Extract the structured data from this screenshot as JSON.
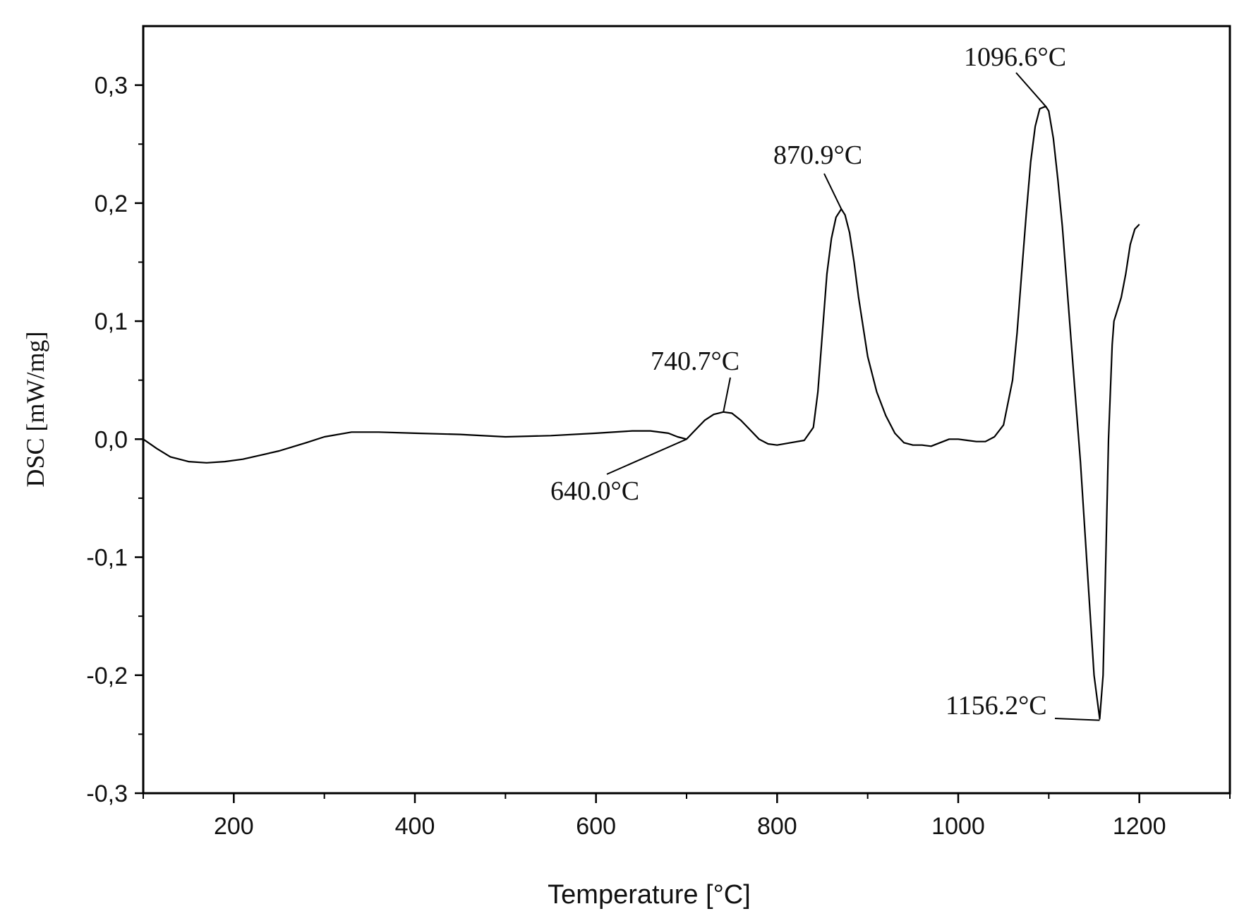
{
  "chart_data": {
    "type": "line",
    "xlabel": "Temperature [°C]",
    "ylabel": "DSC [mW/mg]",
    "xlim": [
      100,
      1300
    ],
    "ylim": [
      -0.3,
      0.35
    ],
    "x_ticks": [
      200,
      400,
      600,
      800,
      1000,
      1200
    ],
    "x_tick_labels": [
      "200",
      "400",
      "600",
      "800",
      "1000",
      "1200"
    ],
    "y_ticks": [
      -0.3,
      -0.2,
      -0.1,
      0.0,
      0.1,
      0.2,
      0.3
    ],
    "y_tick_labels": [
      "-0,3",
      "-0,2",
      "-0,1",
      "0,0",
      "0,1",
      "0,2",
      "0,3"
    ],
    "grid": false,
    "series": [
      {
        "x": [
          100,
          115,
          130,
          150,
          170,
          190,
          210,
          250,
          280,
          300,
          330,
          360,
          400,
          450,
          500,
          550,
          600,
          640,
          660,
          680,
          690,
          700,
          710,
          720,
          730,
          740.7,
          750,
          760,
          770,
          780,
          790,
          800,
          815,
          830,
          840,
          845,
          850,
          855,
          860,
          865,
          870.9,
          875,
          880,
          885,
          890,
          900,
          910,
          920,
          930,
          940,
          950,
          960,
          970,
          980,
          990,
          1000,
          1010,
          1020,
          1030,
          1040,
          1050,
          1060,
          1065,
          1070,
          1075,
          1080,
          1085,
          1090,
          1096.6,
          1100,
          1105,
          1110,
          1115,
          1120,
          1125,
          1130,
          1135,
          1140,
          1145,
          1150,
          1156.2,
          1160,
          1163,
          1166,
          1170,
          1172,
          1174,
          1178,
          1180,
          1185,
          1190,
          1195,
          1200
        ],
        "y": [
          0.0,
          -0.008,
          -0.015,
          -0.019,
          -0.02,
          -0.019,
          -0.017,
          -0.01,
          -0.003,
          0.002,
          0.006,
          0.006,
          0.005,
          0.004,
          0.002,
          0.003,
          0.005,
          0.007,
          0.007,
          0.005,
          0.002,
          0.0,
          0.008,
          0.016,
          0.021,
          0.023,
          0.022,
          0.016,
          0.008,
          0.0,
          -0.004,
          -0.005,
          -0.003,
          -0.001,
          0.01,
          0.04,
          0.09,
          0.14,
          0.17,
          0.188,
          0.195,
          0.19,
          0.175,
          0.15,
          0.12,
          0.07,
          0.04,
          0.02,
          0.005,
          -0.003,
          -0.005,
          -0.005,
          -0.006,
          -0.003,
          0.0,
          0.0,
          -0.001,
          -0.002,
          -0.002,
          0.002,
          0.012,
          0.05,
          0.09,
          0.14,
          0.19,
          0.235,
          0.265,
          0.28,
          0.282,
          0.278,
          0.255,
          0.22,
          0.18,
          0.13,
          0.08,
          0.03,
          -0.02,
          -0.08,
          -0.14,
          -0.2,
          -0.237,
          -0.2,
          -0.1,
          0.0,
          0.08,
          0.1,
          0.105,
          0.115,
          0.12,
          0.14,
          0.165,
          0.178,
          0.182
        ]
      }
    ],
    "annotations": [
      {
        "label": "640.0°C",
        "x": 640.0,
        "y": 0.0
      },
      {
        "label": "740.7°C",
        "x": 740.7,
        "y": 0.023
      },
      {
        "label": "870.9°C",
        "x": 870.9,
        "y": 0.195
      },
      {
        "label": "1096.6°C",
        "x": 1096.6,
        "y": 0.282
      },
      {
        "label": "1156.2°C",
        "x": 1156.2,
        "y": -0.237
      }
    ],
    "colors": {
      "line": "#000000",
      "axis": "#000000",
      "background": "#ffffff"
    }
  }
}
